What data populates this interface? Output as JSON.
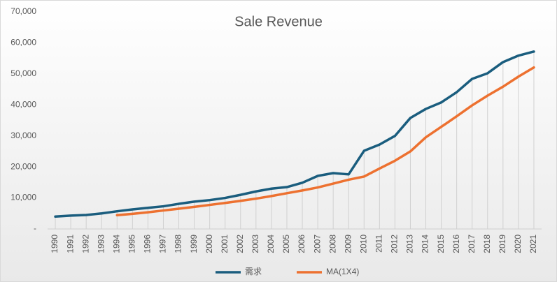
{
  "chart_data": {
    "type": "line",
    "title": "Sale Revenue",
    "categories": [
      "1990",
      "1991",
      "1992",
      "1993",
      "1994",
      "1995",
      "1996",
      "1997",
      "1998",
      "1999",
      "2000",
      "2001",
      "2002",
      "2003",
      "2004",
      "2005",
      "2006",
      "2007",
      "2008",
      "2009",
      "2010",
      "2011",
      "2012",
      "2013",
      "2014",
      "2015",
      "2016",
      "2017",
      "2018",
      "2019",
      "2020",
      "2021"
    ],
    "series": [
      {
        "name": "需求",
        "color": "#1a5d7e",
        "values": [
          4000,
          4300,
          4500,
          5000,
          5700,
          6300,
          6800,
          7300,
          8100,
          8800,
          9300,
          10000,
          11000,
          12100,
          13000,
          13500,
          14900,
          17100,
          18000,
          17600,
          25200,
          27200,
          30000,
          35800,
          38700,
          40800,
          44100,
          48400,
          50200,
          53800,
          55900,
          57200
        ]
      },
      {
        "name": "MA(1X4)",
        "color": "#ed7130",
        "values": [
          null,
          null,
          null,
          null,
          4450,
          4875,
          5375,
          5950,
          6525,
          7125,
          7750,
          8375,
          9050,
          9775,
          10600,
          11525,
          12400,
          13375,
          14625,
          15875,
          16900,
          19475,
          22000,
          25000,
          29550,
          32925,
          36325,
          39850,
          43000,
          45875,
          49125,
          52075
        ]
      }
    ],
    "ylim": [
      0,
      70000
    ],
    "yticks": [
      {
        "value": 0,
        "label": "-"
      },
      {
        "value": 10000,
        "label": "10,000"
      },
      {
        "value": 20000,
        "label": "20,000"
      },
      {
        "value": 30000,
        "label": "30,000"
      },
      {
        "value": 40000,
        "label": "40,000"
      },
      {
        "value": 50000,
        "label": "50,000"
      },
      {
        "value": 60000,
        "label": "60,000"
      },
      {
        "value": 70000,
        "label": "70,000"
      }
    ],
    "legend": "bottom",
    "drop_lines": true
  }
}
